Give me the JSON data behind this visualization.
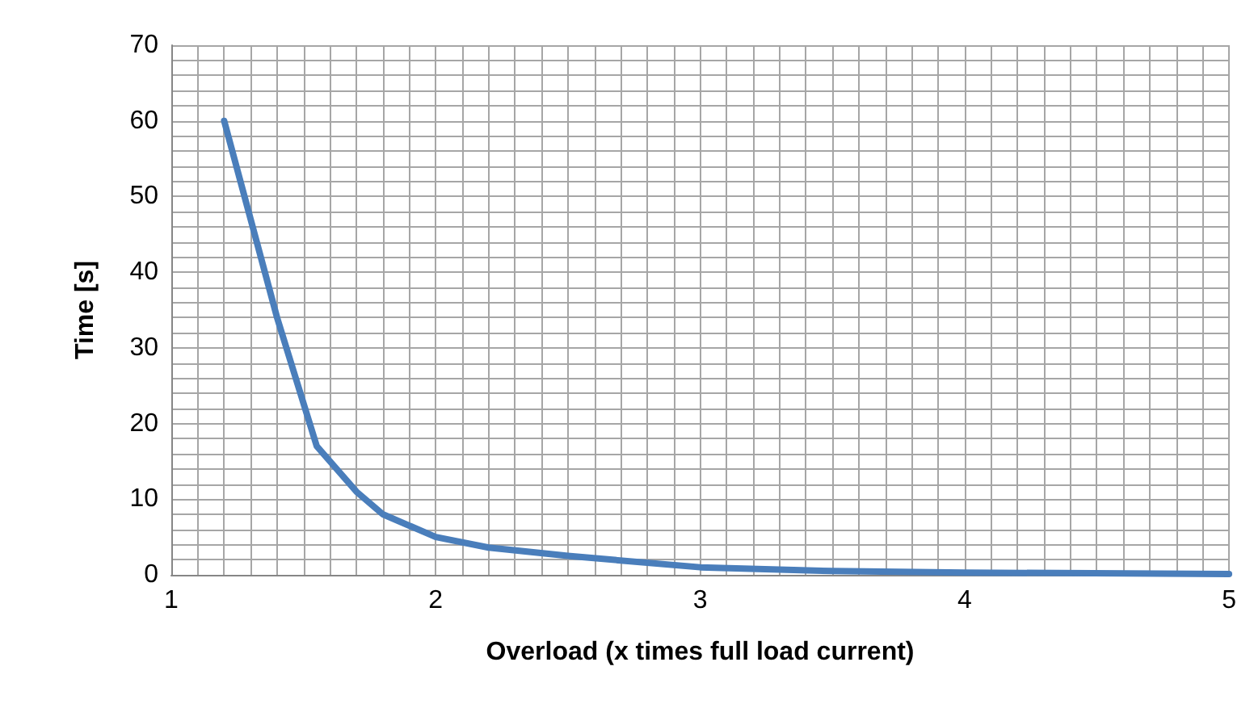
{
  "chart_data": {
    "type": "line",
    "xlabel": "Overload (x times full load current)",
    "ylabel": "Time [s]",
    "x": [
      1.2,
      1.3,
      1.4,
      1.55,
      1.7,
      1.8,
      2,
      2.2,
      2.5,
      3,
      3.5,
      4,
      5
    ],
    "series": [
      {
        "color": "#4a7ebb",
        "values": [
          60,
          47,
          34,
          17,
          11,
          8,
          5,
          3.6,
          2.5,
          1,
          0.5,
          0.3,
          0.1
        ]
      }
    ],
    "xlim": [
      1,
      5
    ],
    "ylim": [
      0,
      70
    ],
    "grid": true,
    "marker": "none",
    "line_style": "solid",
    "xticks": [
      1,
      {
        "value": 1.1,
        "label": null
      },
      {
        "value": 1.2,
        "label": null
      },
      {
        "value": 1.3,
        "label": null
      },
      {
        "value": 1.4,
        "label": null
      },
      {
        "value": 1.5,
        "label": null
      },
      {
        "value": 1.6,
        "label": null
      },
      {
        "value": 1.7,
        "label": null
      },
      {
        "value": 1.8,
        "label": null
      },
      {
        "value": 1.9,
        "label": null
      },
      2,
      {
        "value": 2.1,
        "label": null
      },
      {
        "value": 2.2,
        "label": null
      },
      {
        "value": 2.3,
        "label": null
      },
      {
        "value": 2.4,
        "label": null
      },
      {
        "value": 2.5,
        "label": null
      },
      {
        "value": 2.6,
        "label": null
      },
      {
        "value": 2.7,
        "label": null
      },
      {
        "value": 2.8,
        "label": null
      },
      {
        "value": 2.9,
        "label": null
      },
      3,
      {
        "value": 3.1,
        "label": null
      },
      {
        "value": 3.2,
        "label": null
      },
      {
        "value": 3.3,
        "label": null
      },
      {
        "value": 3.4,
        "label": null
      },
      {
        "value": 3.5,
        "label": null
      },
      {
        "value": 3.6,
        "label": null
      },
      {
        "value": 3.7,
        "label": null
      },
      {
        "value": 3.8,
        "label": null
      },
      {
        "value": 3.9,
        "label": null
      },
      4,
      {
        "value": 4.1,
        "label": null
      },
      {
        "value": 4.2,
        "label": null
      },
      {
        "value": 4.3,
        "label": null
      },
      {
        "value": 4.4,
        "label": null
      },
      {
        "value": 4.5,
        "label": null
      },
      {
        "value": 4.6,
        "label": null
      },
      {
        "value": 4.7,
        "label": null
      },
      {
        "value": 4.8,
        "label": null
      },
      {
        "value": 4.9,
        "label": null
      },
      5
    ],
    "yticks": [
      0,
      {
        "value": 2,
        "label": null
      },
      {
        "value": 4,
        "label": null
      },
      {
        "value": 6,
        "label": null
      },
      {
        "value": 8,
        "label": null
      },
      10,
      {
        "value": 12,
        "label": null
      },
      {
        "value": 14,
        "label": null
      },
      {
        "value": 16,
        "label": null
      },
      {
        "value": 18,
        "label": null
      },
      20,
      {
        "value": 22,
        "label": null
      },
      {
        "value": 24,
        "label": null
      },
      {
        "value": 26,
        "label": null
      },
      {
        "value": 28,
        "label": null
      },
      30,
      {
        "value": 32,
        "label": null
      },
      {
        "value": 34,
        "label": null
      },
      {
        "value": 36,
        "label": null
      },
      {
        "value": 38,
        "label": null
      },
      40,
      {
        "value": 42,
        "label": null
      },
      {
        "value": 44,
        "label": null
      },
      {
        "value": 46,
        "label": null
      },
      {
        "value": 48,
        "label": null
      },
      50,
      {
        "value": 52,
        "label": null
      },
      {
        "value": 54,
        "label": null
      },
      {
        "value": 56,
        "label": null
      },
      {
        "value": 58,
        "label": null
      },
      60,
      {
        "value": 62,
        "label": null
      },
      {
        "value": 64,
        "label": null
      },
      {
        "value": 66,
        "label": null
      },
      {
        "value": 68,
        "label": null
      },
      70
    ]
  }
}
